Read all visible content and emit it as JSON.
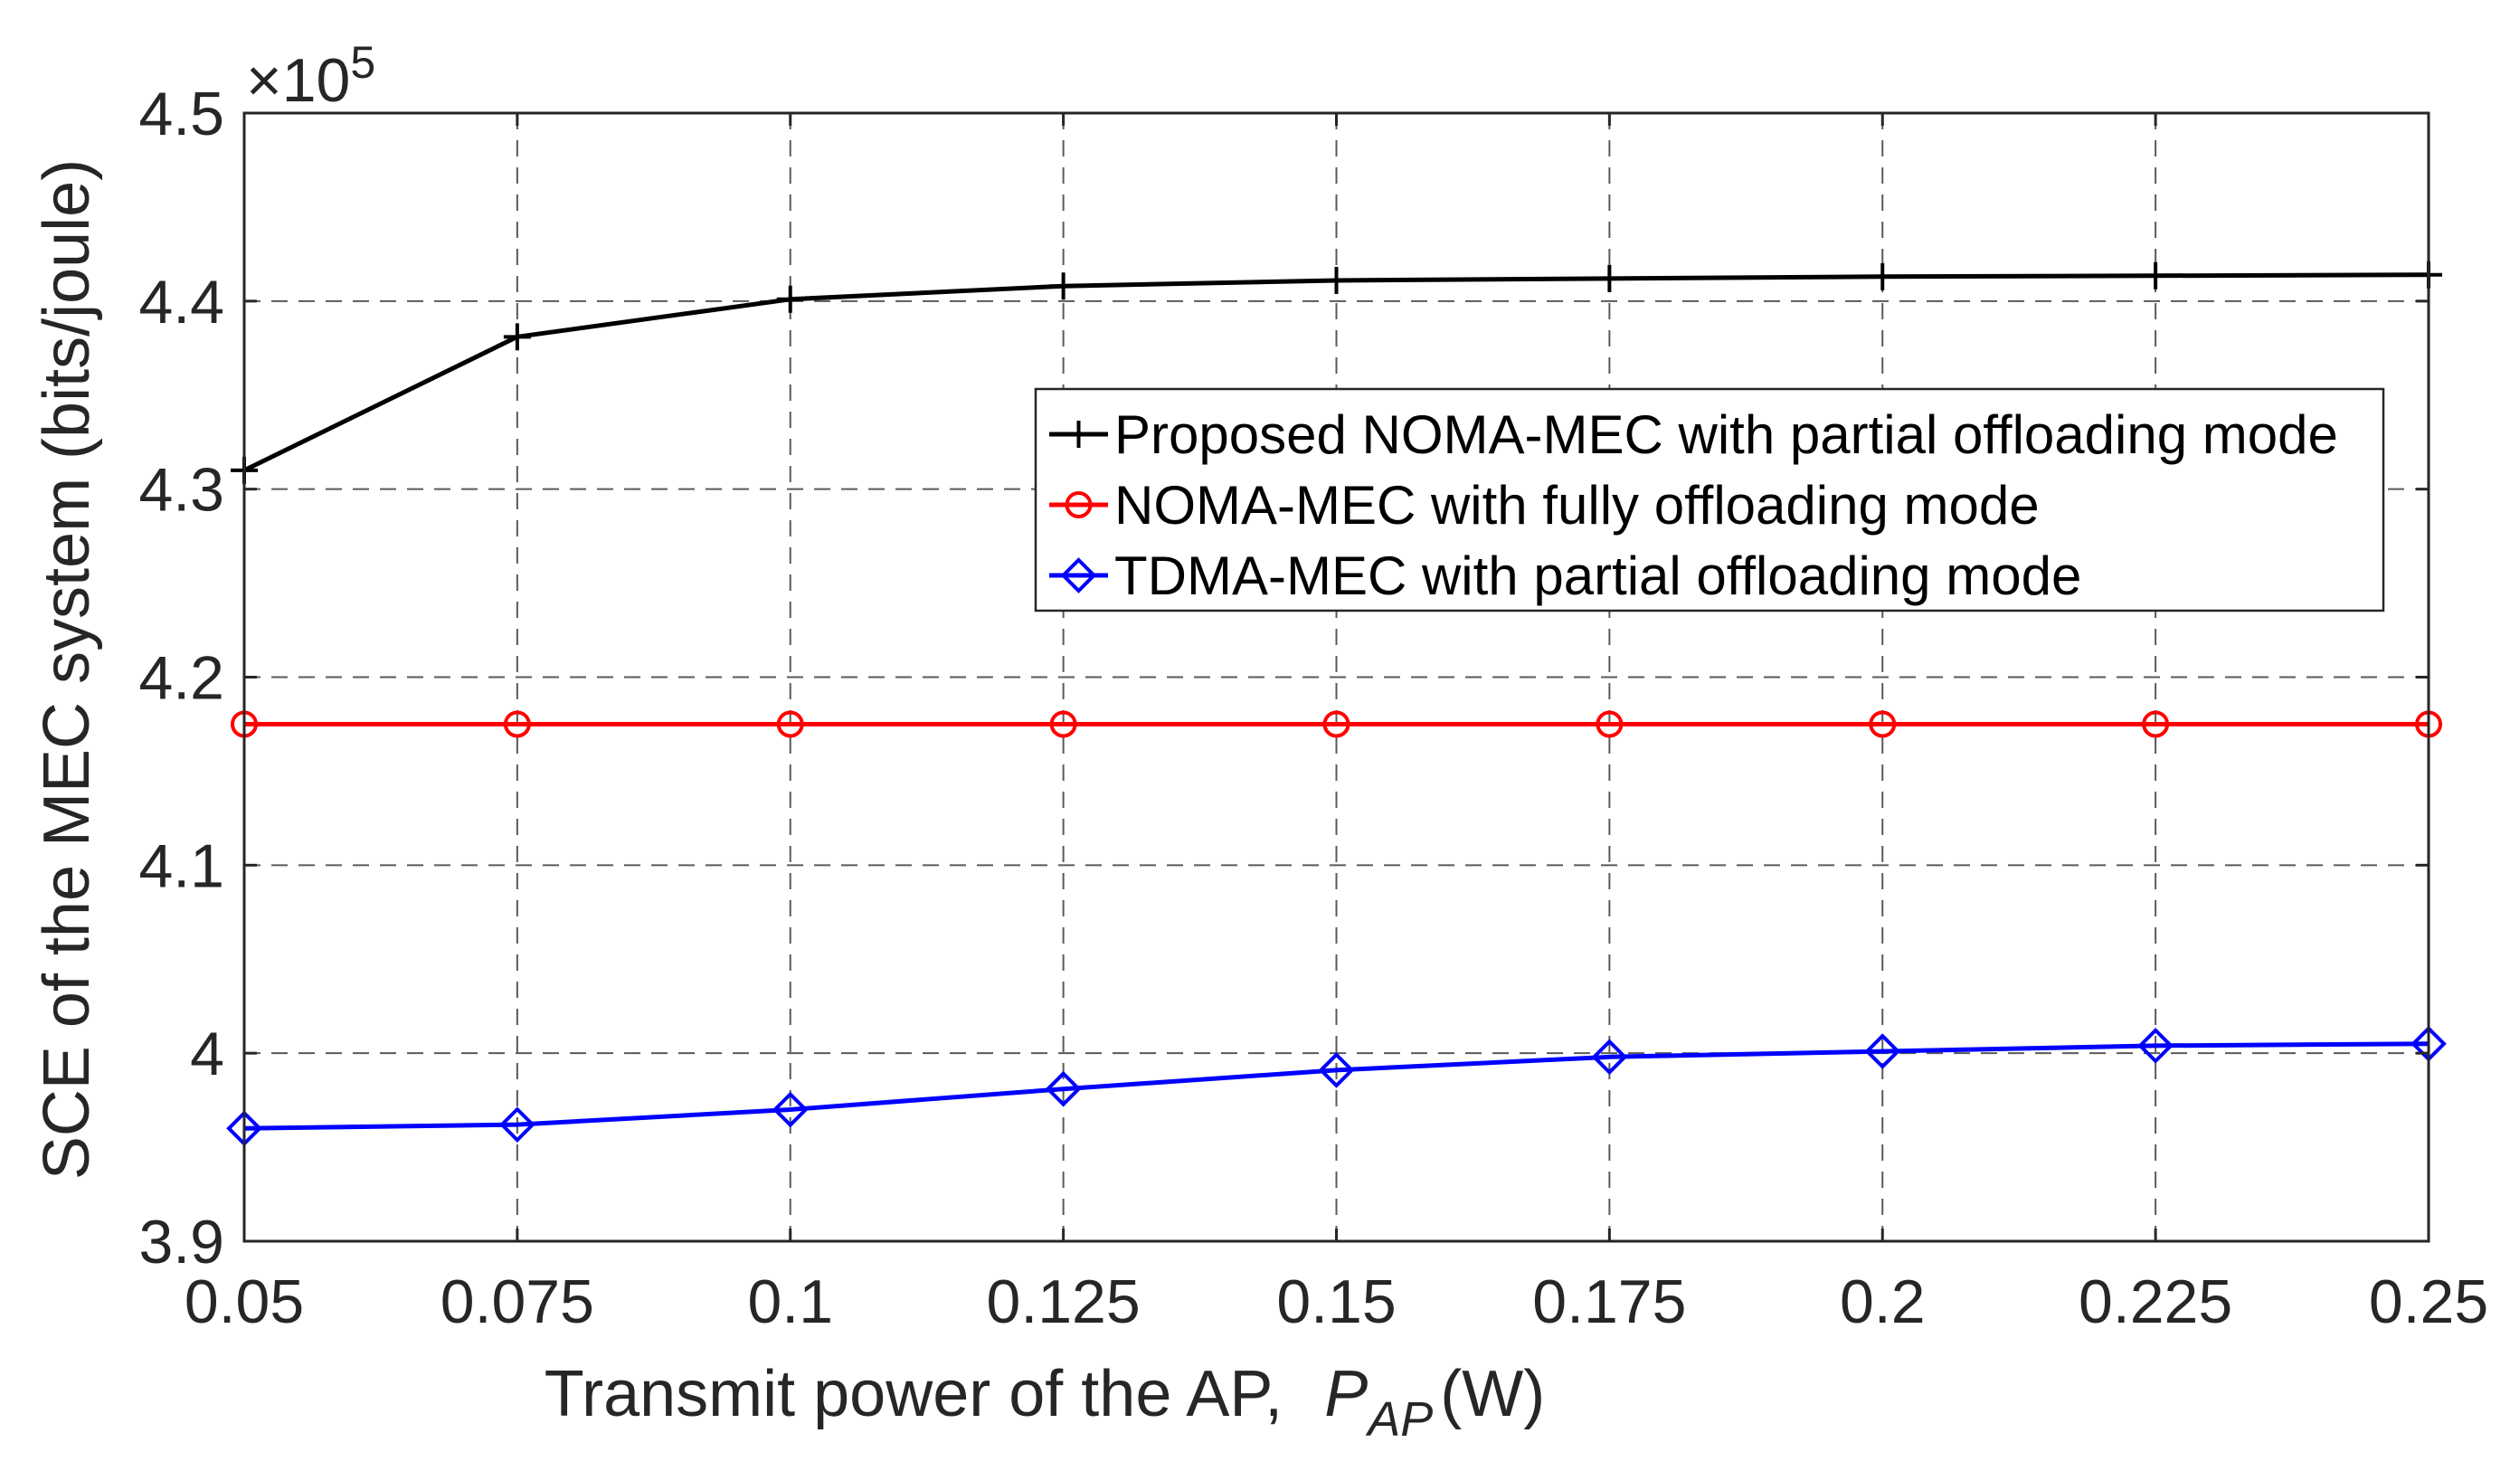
{
  "chart_data": {
    "type": "line",
    "title": "",
    "xlabel": {
      "text": "Transmit power of the AP,",
      "symbol": "P",
      "subscript": "AP",
      "unit": "(W)"
    },
    "ylabel": "SCE of the MEC system (bits/joule)",
    "y_exponent_label": "×10",
    "y_exponent_power": "5",
    "x": [
      0.05,
      0.075,
      0.1,
      0.125,
      0.15,
      0.175,
      0.2,
      0.225,
      0.25
    ],
    "x_tick_labels": [
      "0.05",
      "0.075",
      "0.1",
      "0.125",
      "0.15",
      "0.175",
      "0.2",
      "0.225",
      "0.25"
    ],
    "y_ticks": [
      3.9,
      4.0,
      4.1,
      4.2,
      4.3,
      4.4,
      4.5
    ],
    "y_tick_labels": [
      "3.9",
      "4",
      "4.1",
      "4.2",
      "4.3",
      "4.4",
      "4.5"
    ],
    "xlim": [
      0.05,
      0.25
    ],
    "ylim": [
      3.9,
      4.5
    ],
    "grid": true,
    "legend_position": "center-right",
    "series": [
      {
        "name": "Proposed NOMA-MEC with partial offloading mode",
        "color": "#000000",
        "marker": "plus",
        "values": [
          4.31,
          4.381,
          4.401,
          4.408,
          4.411,
          4.412,
          4.413,
          4.4135,
          4.414
        ]
      },
      {
        "name": "NOMA-MEC with fully offloading mode",
        "color": "#ff0000",
        "marker": "circle",
        "values": [
          4.175,
          4.175,
          4.175,
          4.175,
          4.175,
          4.175,
          4.175,
          4.175,
          4.175
        ]
      },
      {
        "name": "TDMA-MEC with partial offloading mode",
        "color": "#0000ff",
        "marker": "diamond",
        "values": [
          3.96,
          3.962,
          3.97,
          3.981,
          3.991,
          3.998,
          4.001,
          4.004,
          4.005
        ]
      }
    ]
  }
}
